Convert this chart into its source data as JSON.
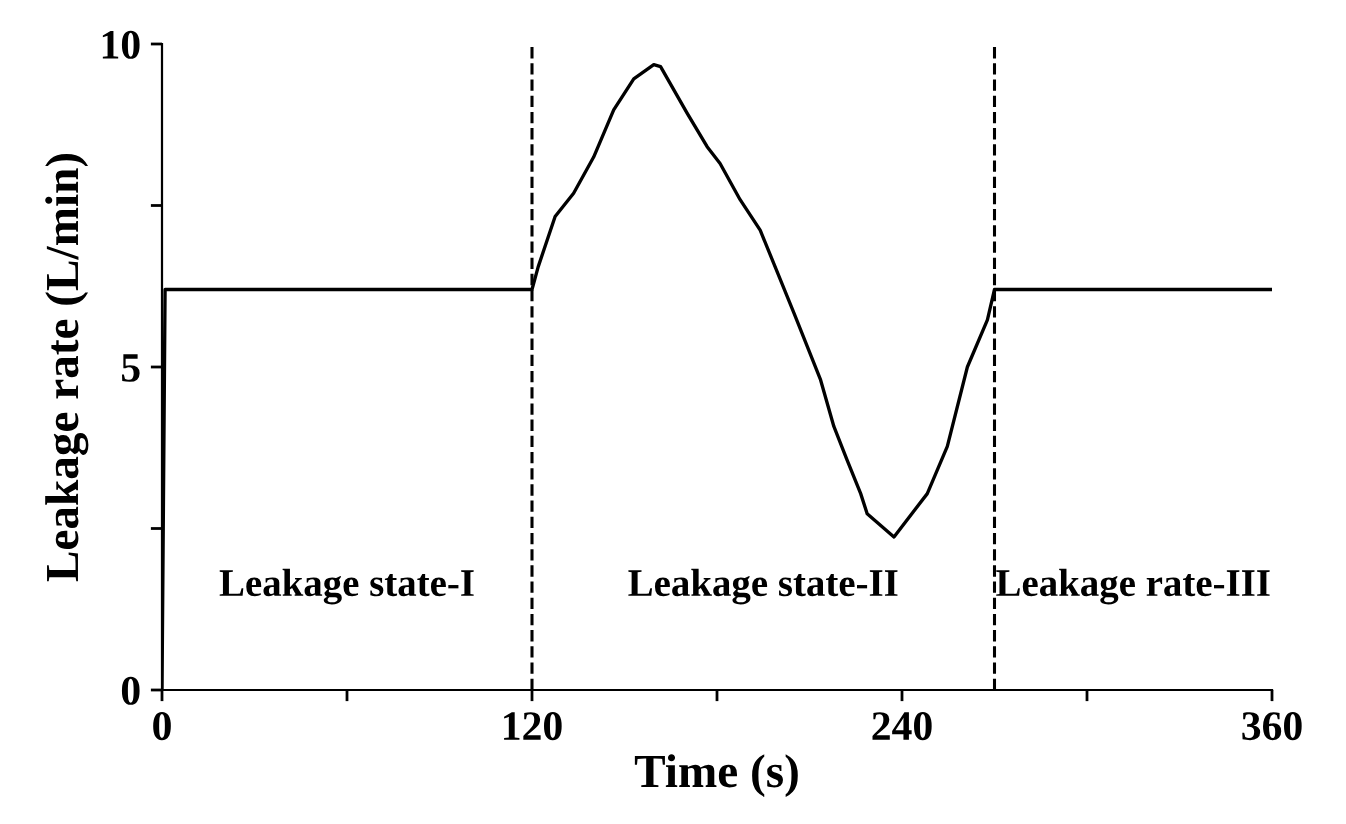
{
  "chart_data": {
    "type": "line",
    "xlabel": "Time (s)",
    "ylabel": "Leakage rate (L/min)",
    "xlim": [
      0,
      360
    ],
    "ylim": [
      0,
      10
    ],
    "xticks": [
      0,
      {
        "value": 60,
        "label": null
      },
      120,
      {
        "value": 180,
        "label": null
      },
      240,
      {
        "value": 300,
        "label": null
      },
      360
    ],
    "yticks": [
      0,
      {
        "value": 2.5,
        "label": null
      },
      5,
      {
        "value": 7.5,
        "label": null
      },
      10
    ],
    "grid": false,
    "legend": false,
    "marker": "none",
    "line_style": "solid",
    "series": [
      {
        "color": "#000000",
        "x": [
          0,
          1,
          120,
          122,
          127.5,
          133.5,
          140,
          146.5,
          153,
          159.5,
          161.7,
          170.3,
          176.8,
          181,
          187.5,
          194,
          205,
          213.6,
          217.9,
          222.2,
          226.6,
          228.7,
          237.4,
          248.2,
          254.7,
          261.2,
          267.7,
          270,
          360
        ],
        "values": [
          0,
          6.2,
          6.2,
          6.55,
          7.33,
          7.69,
          8.25,
          8.98,
          9.46,
          9.68,
          9.65,
          8.93,
          8.41,
          8.15,
          7.59,
          7.12,
          5.83,
          4.8,
          4.08,
          3.56,
          3.04,
          2.73,
          2.37,
          3.04,
          3.77,
          5.0,
          5.73,
          6.2,
          6.2
        ]
      }
    ],
    "ref_lines": [
      {
        "axis": "x",
        "value": 120,
        "line_style": "dashed",
        "color": "#000000"
      },
      {
        "axis": "x",
        "value": 270,
        "line_style": "dashed",
        "color": "#000000"
      }
    ],
    "annotations": [
      "Leakage state-I",
      "Leakage state-II",
      "Leakage rate-III"
    ]
  }
}
